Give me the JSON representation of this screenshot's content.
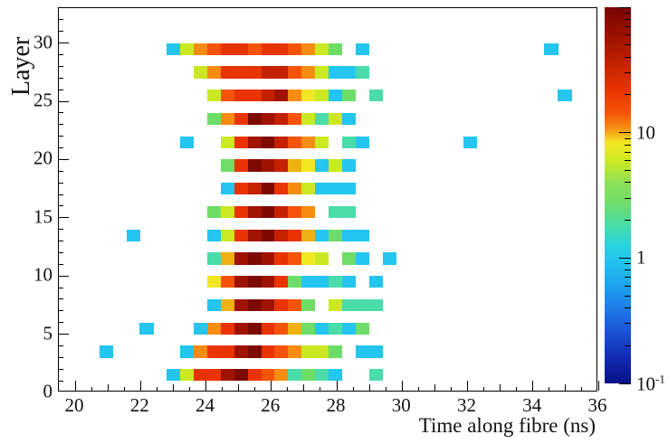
{
  "chart_data": {
    "type": "heatmap",
    "title": "",
    "xlabel": "Time along fibre (ns)",
    "ylabel": "Layer",
    "x_axis": {
      "min": 19.5,
      "max": 36,
      "major_ticks": [
        20,
        22,
        24,
        26,
        28,
        30,
        32,
        34,
        36
      ],
      "major_tick_labels": [
        "20",
        "22",
        "24",
        "26",
        "28",
        "30",
        "32",
        "34",
        "36"
      ],
      "mid_ticks": [
        21,
        23,
        25,
        27,
        29,
        31,
        33,
        35
      ],
      "minor_tick_step": 0.5
    },
    "y_axis": {
      "min": 0,
      "max": 33,
      "major_ticks": [
        0,
        5,
        10,
        15,
        20,
        25,
        30
      ],
      "major_tick_labels": [
        "0",
        "5",
        "10",
        "15",
        "20",
        "25",
        "30"
      ],
      "minor_tick_step": 1
    },
    "grid": false,
    "bin_width_ns": 0.4125,
    "x_bins_start": 19.5,
    "layer_row_height": 1,
    "palette": {
      "C": {
        "hex": "#24c5ee",
        "value": 1.2
      },
      "T": {
        "hex": "#4adca9",
        "value": 2.2
      },
      "G": {
        "hex": "#6edd68",
        "value": 3.2
      },
      "LG": {
        "hex": "#cbe923",
        "value": 5.5
      },
      "Y": {
        "hex": "#f2e723",
        "value": 8.5
      },
      "M": {
        "hex": "#eeb111",
        "value": 12
      },
      "O": {
        "hex": "#f68c12",
        "value": 17
      },
      "RO": {
        "hex": "#f55309",
        "value": 27
      },
      "R": {
        "hex": "#e93301",
        "value": 40
      },
      "DR": {
        "hex": "#c32101",
        "value": 58
      },
      "XR": {
        "hex": "#a01201",
        "value": 78
      },
      "XXR": {
        "hex": "#7c0a02",
        "value": 95
      }
    },
    "rows": [
      {
        "layer": 29.5,
        "cells": [
          [
            8,
            "C"
          ],
          [
            9,
            "LG"
          ],
          [
            10,
            "O"
          ],
          [
            11,
            "RO"
          ],
          [
            12,
            "R"
          ],
          [
            13,
            "R"
          ],
          [
            14,
            "RO"
          ],
          [
            15,
            "R"
          ],
          [
            16,
            "R"
          ],
          [
            17,
            "RO"
          ],
          [
            18,
            "O"
          ],
          [
            19,
            "LG"
          ],
          [
            20,
            "G"
          ],
          [
            22,
            "C"
          ],
          [
            36,
            "C"
          ]
        ]
      },
      {
        "layer": 27.5,
        "cells": [
          [
            10,
            "LG"
          ],
          [
            11,
            "O"
          ],
          [
            12,
            "R"
          ],
          [
            13,
            "R"
          ],
          [
            14,
            "R"
          ],
          [
            15,
            "DR"
          ],
          [
            16,
            "DR"
          ],
          [
            17,
            "RO"
          ],
          [
            18,
            "O"
          ],
          [
            19,
            "LG"
          ],
          [
            20,
            "C"
          ],
          [
            21,
            "C"
          ],
          [
            22,
            "T"
          ]
        ]
      },
      {
        "layer": 25.5,
        "cells": [
          [
            11,
            "LG"
          ],
          [
            12,
            "RO"
          ],
          [
            13,
            "R"
          ],
          [
            14,
            "R"
          ],
          [
            15,
            "DR"
          ],
          [
            16,
            "XR"
          ],
          [
            17,
            "O"
          ],
          [
            18,
            "Y"
          ],
          [
            19,
            "LG"
          ],
          [
            20,
            "C"
          ],
          [
            21,
            "G"
          ],
          [
            23,
            "T"
          ],
          [
            37,
            "C"
          ]
        ]
      },
      {
        "layer": 23.5,
        "cells": [
          [
            11,
            "G"
          ],
          [
            12,
            "O"
          ],
          [
            13,
            "R"
          ],
          [
            14,
            "XXR"
          ],
          [
            15,
            "XR"
          ],
          [
            16,
            "DR"
          ],
          [
            17,
            "RO"
          ],
          [
            18,
            "LG"
          ],
          [
            19,
            "T"
          ],
          [
            20,
            "LG"
          ],
          [
            21,
            "C"
          ]
        ]
      },
      {
        "layer": 21.5,
        "cells": [
          [
            9,
            "C"
          ],
          [
            12,
            "LG"
          ],
          [
            13,
            "R"
          ],
          [
            14,
            "XR"
          ],
          [
            15,
            "XXR"
          ],
          [
            16,
            "DR"
          ],
          [
            17,
            "RO"
          ],
          [
            18,
            "O"
          ],
          [
            19,
            "LG"
          ],
          [
            21,
            "T"
          ],
          [
            22,
            "C"
          ],
          [
            30,
            "C"
          ]
        ]
      },
      {
        "layer": 19.5,
        "cells": [
          [
            12,
            "G"
          ],
          [
            13,
            "R"
          ],
          [
            14,
            "XXR"
          ],
          [
            15,
            "XR"
          ],
          [
            16,
            "DR"
          ],
          [
            17,
            "M"
          ],
          [
            18,
            "Y"
          ],
          [
            19,
            "C"
          ],
          [
            20,
            "LG"
          ],
          [
            21,
            "C"
          ]
        ]
      },
      {
        "layer": 17.5,
        "cells": [
          [
            12,
            "C"
          ],
          [
            13,
            "R"
          ],
          [
            14,
            "DR"
          ],
          [
            15,
            "XXR"
          ],
          [
            16,
            "R"
          ],
          [
            17,
            "O"
          ],
          [
            18,
            "LG"
          ],
          [
            19,
            "C"
          ],
          [
            20,
            "C"
          ],
          [
            21,
            "C"
          ]
        ]
      },
      {
        "layer": 15.5,
        "cells": [
          [
            11,
            "G"
          ],
          [
            12,
            "LG"
          ],
          [
            13,
            "R"
          ],
          [
            14,
            "XR"
          ],
          [
            15,
            "XXR"
          ],
          [
            16,
            "DR"
          ],
          [
            17,
            "RO"
          ],
          [
            18,
            "O"
          ],
          [
            20,
            "T"
          ],
          [
            21,
            "T"
          ]
        ]
      },
      {
        "layer": 13.5,
        "cells": [
          [
            5,
            "C"
          ],
          [
            11,
            "C"
          ],
          [
            12,
            "LG"
          ],
          [
            13,
            "R"
          ],
          [
            14,
            "XR"
          ],
          [
            15,
            "XXR"
          ],
          [
            16,
            "DR"
          ],
          [
            17,
            "R"
          ],
          [
            18,
            "M"
          ],
          [
            19,
            "C"
          ],
          [
            20,
            "G"
          ],
          [
            21,
            "C"
          ],
          [
            22,
            "C"
          ]
        ]
      },
      {
        "layer": 11.5,
        "cells": [
          [
            11,
            "T"
          ],
          [
            12,
            "M"
          ],
          [
            13,
            "XR"
          ],
          [
            14,
            "XXR"
          ],
          [
            15,
            "XR"
          ],
          [
            16,
            "R"
          ],
          [
            17,
            "RO"
          ],
          [
            18,
            "Y"
          ],
          [
            19,
            "LG"
          ],
          [
            21,
            "G"
          ],
          [
            22,
            "C"
          ],
          [
            24,
            "C"
          ]
        ]
      },
      {
        "layer": 9.5,
        "cells": [
          [
            11,
            "Y"
          ],
          [
            12,
            "RO"
          ],
          [
            13,
            "XR"
          ],
          [
            14,
            "XXR"
          ],
          [
            15,
            "XR"
          ],
          [
            16,
            "R"
          ],
          [
            17,
            "G"
          ],
          [
            18,
            "C"
          ],
          [
            19,
            "C"
          ],
          [
            20,
            "T"
          ],
          [
            21,
            "C"
          ],
          [
            23,
            "C"
          ]
        ]
      },
      {
        "layer": 7.5,
        "cells": [
          [
            11,
            "C"
          ],
          [
            12,
            "M"
          ],
          [
            13,
            "XR"
          ],
          [
            14,
            "XXR"
          ],
          [
            15,
            "XR"
          ],
          [
            16,
            "R"
          ],
          [
            17,
            "RO"
          ],
          [
            18,
            "G"
          ],
          [
            20,
            "LG"
          ],
          [
            21,
            "T"
          ],
          [
            22,
            "T"
          ],
          [
            23,
            "T"
          ]
        ]
      },
      {
        "layer": 5.5,
        "cells": [
          [
            6,
            "C"
          ],
          [
            10,
            "C"
          ],
          [
            11,
            "O"
          ],
          [
            12,
            "R"
          ],
          [
            13,
            "XR"
          ],
          [
            14,
            "XXR"
          ],
          [
            15,
            "R"
          ],
          [
            16,
            "RO"
          ],
          [
            17,
            "M"
          ],
          [
            18,
            "G"
          ],
          [
            19,
            "C"
          ],
          [
            20,
            "T"
          ],
          [
            21,
            "C"
          ],
          [
            22,
            "G"
          ]
        ]
      },
      {
        "layer": 3.5,
        "cells": [
          [
            3,
            "C"
          ],
          [
            9,
            "C"
          ],
          [
            10,
            "O"
          ],
          [
            11,
            "R"
          ],
          [
            12,
            "R"
          ],
          [
            13,
            "XR"
          ],
          [
            14,
            "XXR"
          ],
          [
            15,
            "R"
          ],
          [
            16,
            "RO"
          ],
          [
            17,
            "O"
          ],
          [
            18,
            "LG"
          ],
          [
            19,
            "LG"
          ],
          [
            20,
            "G"
          ],
          [
            22,
            "C"
          ],
          [
            23,
            "C"
          ]
        ]
      },
      {
        "layer": 1.5,
        "cells": [
          [
            8,
            "C"
          ],
          [
            9,
            "LG"
          ],
          [
            10,
            "R"
          ],
          [
            11,
            "R"
          ],
          [
            12,
            "XR"
          ],
          [
            13,
            "XXR"
          ],
          [
            14,
            "R"
          ],
          [
            15,
            "RO"
          ],
          [
            16,
            "O"
          ],
          [
            17,
            "T"
          ],
          [
            18,
            "G"
          ],
          [
            19,
            "T"
          ],
          [
            20,
            "C"
          ],
          [
            23,
            "T"
          ]
        ]
      }
    ],
    "colorbar": {
      "scale": "log",
      "min": 0.1,
      "max": 100,
      "legend_position": "right",
      "labels": [
        {
          "text": "10",
          "sup": "",
          "value": 10
        },
        {
          "text": "1",
          "sup": "",
          "value": 1
        },
        {
          "text": "10",
          "sup": "-1",
          "value": 0.1
        }
      ]
    }
  }
}
